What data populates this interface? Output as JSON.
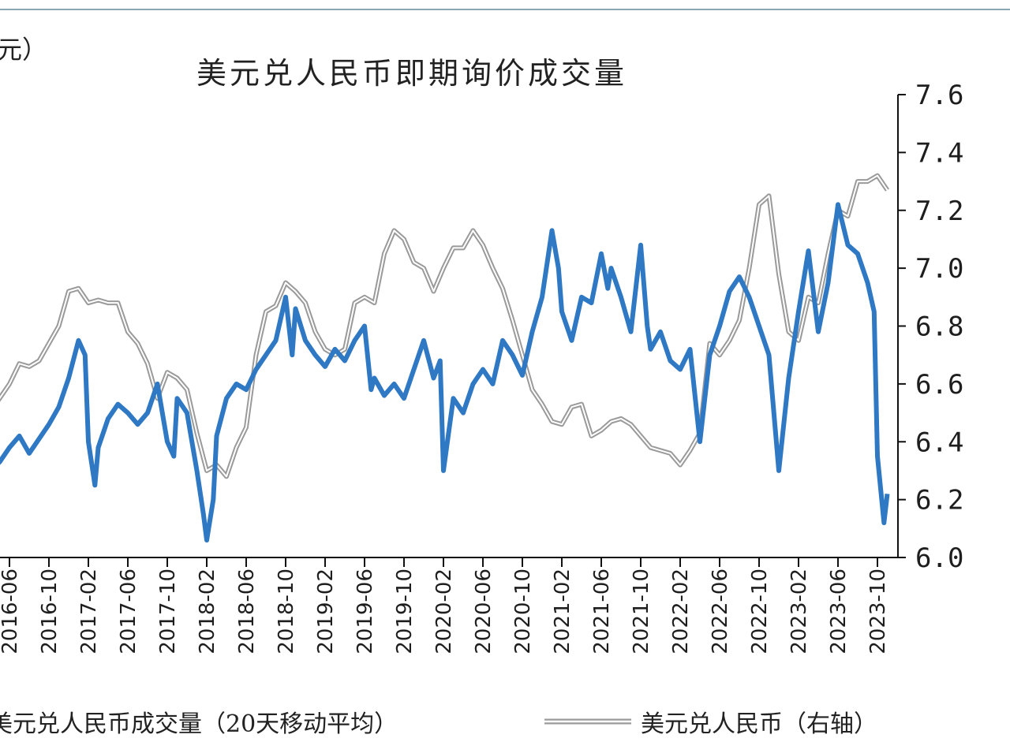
{
  "chart_data": {
    "type": "line",
    "title": "美元兑人民币即期询价成交量",
    "left_unit_fragment": "元）",
    "right_axis": {
      "ylim": [
        6.0,
        7.6
      ],
      "ticks": [
        "6.0",
        "6.2",
        "6.4",
        "6.6",
        "6.8",
        "7.0",
        "7.2",
        "7.4",
        "7.6"
      ]
    },
    "x_ticks": [
      "2016-06",
      "2016-10",
      "2017-02",
      "2017-06",
      "2017-10",
      "2018-02",
      "2018-06",
      "2018-10",
      "2019-02",
      "2019-06",
      "2019-10",
      "2020-02",
      "2020-06",
      "2020-10",
      "2021-02",
      "2021-06",
      "2021-10",
      "2022-02",
      "2022-06",
      "2022-10",
      "2023-02",
      "2023-06",
      "2023-10"
    ],
    "series": [
      {
        "name": "美元兑人民币成交量（20天移动平均）",
        "color": "#2f78c4",
        "axis": "left",
        "note": "values expressed on right-axis scale for plotting",
        "points": [
          [
            "2016-04",
            6.3
          ],
          [
            "2016-05",
            6.33
          ],
          [
            "2016-06",
            6.38
          ],
          [
            "2016-07",
            6.42
          ],
          [
            "2016-08",
            6.36
          ],
          [
            "2016-09",
            6.41
          ],
          [
            "2016-10",
            6.46
          ],
          [
            "2016-11",
            6.52
          ],
          [
            "2016-12",
            6.62
          ],
          [
            "2017-01",
            6.75
          ],
          [
            "2017-01-20",
            6.7
          ],
          [
            "2017-02",
            6.4
          ],
          [
            "2017-02-20",
            6.25
          ],
          [
            "2017-03",
            6.38
          ],
          [
            "2017-04",
            6.48
          ],
          [
            "2017-05",
            6.53
          ],
          [
            "2017-06",
            6.5
          ],
          [
            "2017-07",
            6.46
          ],
          [
            "2017-08",
            6.5
          ],
          [
            "2017-09",
            6.6
          ],
          [
            "2017-10",
            6.4
          ],
          [
            "2017-10-20",
            6.35
          ],
          [
            "2017-11",
            6.55
          ],
          [
            "2017-12",
            6.5
          ],
          [
            "2018-01",
            6.3
          ],
          [
            "2018-01-20",
            6.15
          ],
          [
            "2018-02",
            6.06
          ],
          [
            "2018-02-20",
            6.2
          ],
          [
            "2018-03",
            6.42
          ],
          [
            "2018-04",
            6.55
          ],
          [
            "2018-05",
            6.6
          ],
          [
            "2018-06",
            6.58
          ],
          [
            "2018-07",
            6.65
          ],
          [
            "2018-08",
            6.7
          ],
          [
            "2018-09",
            6.75
          ],
          [
            "2018-10",
            6.9
          ],
          [
            "2018-10-20",
            6.7
          ],
          [
            "2018-11",
            6.86
          ],
          [
            "2018-12",
            6.75
          ],
          [
            "2019-01",
            6.7
          ],
          [
            "2019-02",
            6.66
          ],
          [
            "2019-03",
            6.72
          ],
          [
            "2019-04",
            6.68
          ],
          [
            "2019-05",
            6.75
          ],
          [
            "2019-06",
            6.8
          ],
          [
            "2019-06-20",
            6.58
          ],
          [
            "2019-07",
            6.62
          ],
          [
            "2019-08",
            6.56
          ],
          [
            "2019-09",
            6.6
          ],
          [
            "2019-10",
            6.55
          ],
          [
            "2019-11",
            6.65
          ],
          [
            "2019-12",
            6.75
          ],
          [
            "2020-01",
            6.62
          ],
          [
            "2020-01-20",
            6.68
          ],
          [
            "2020-02",
            6.3
          ],
          [
            "2020-03",
            6.55
          ],
          [
            "2020-04",
            6.5
          ],
          [
            "2020-05",
            6.6
          ],
          [
            "2020-06",
            6.65
          ],
          [
            "2020-07",
            6.6
          ],
          [
            "2020-08",
            6.75
          ],
          [
            "2020-09",
            6.7
          ],
          [
            "2020-10",
            6.63
          ],
          [
            "2020-11",
            6.78
          ],
          [
            "2020-12",
            6.9
          ],
          [
            "2021-01",
            7.13
          ],
          [
            "2021-01-20",
            7.0
          ],
          [
            "2021-02",
            6.85
          ],
          [
            "2021-03",
            6.75
          ],
          [
            "2021-04",
            6.9
          ],
          [
            "2021-05",
            6.88
          ],
          [
            "2021-06",
            7.05
          ],
          [
            "2021-06-20",
            6.93
          ],
          [
            "2021-07",
            7.0
          ],
          [
            "2021-08",
            6.9
          ],
          [
            "2021-09",
            6.78
          ],
          [
            "2021-10",
            7.08
          ],
          [
            "2021-10-20",
            6.8
          ],
          [
            "2021-11",
            6.72
          ],
          [
            "2021-12",
            6.78
          ],
          [
            "2022-01",
            6.68
          ],
          [
            "2022-02",
            6.65
          ],
          [
            "2022-03",
            6.72
          ],
          [
            "2022-04",
            6.4
          ],
          [
            "2022-05",
            6.7
          ],
          [
            "2022-06",
            6.8
          ],
          [
            "2022-07",
            6.92
          ],
          [
            "2022-08",
            6.97
          ],
          [
            "2022-09",
            6.9
          ],
          [
            "2022-10",
            6.8
          ],
          [
            "2022-11",
            6.7
          ],
          [
            "2022-12",
            6.3
          ],
          [
            "2023-01",
            6.62
          ],
          [
            "2023-02",
            6.85
          ],
          [
            "2023-03",
            7.06
          ],
          [
            "2023-04",
            6.78
          ],
          [
            "2023-05",
            6.95
          ],
          [
            "2023-06",
            7.22
          ],
          [
            "2023-07",
            7.08
          ],
          [
            "2023-08",
            7.05
          ],
          [
            "2023-09",
            6.95
          ],
          [
            "2023-09-20",
            6.85
          ],
          [
            "2023-10",
            6.35
          ],
          [
            "2023-10-20",
            6.12
          ],
          [
            "2023-11",
            6.22
          ]
        ]
      },
      {
        "name": "美元兑人民币（右轴）",
        "color": "#a6a6a6",
        "axis": "right",
        "points": [
          [
            "2016-04",
            6.5
          ],
          [
            "2016-05",
            6.55
          ],
          [
            "2016-06",
            6.6
          ],
          [
            "2016-07",
            6.67
          ],
          [
            "2016-08",
            6.66
          ],
          [
            "2016-09",
            6.68
          ],
          [
            "2016-10",
            6.74
          ],
          [
            "2016-11",
            6.8
          ],
          [
            "2016-12",
            6.92
          ],
          [
            "2017-01",
            6.93
          ],
          [
            "2017-02",
            6.88
          ],
          [
            "2017-03",
            6.89
          ],
          [
            "2017-04",
            6.88
          ],
          [
            "2017-05",
            6.88
          ],
          [
            "2017-06",
            6.78
          ],
          [
            "2017-07",
            6.74
          ],
          [
            "2017-08",
            6.67
          ],
          [
            "2017-09",
            6.55
          ],
          [
            "2017-10",
            6.64
          ],
          [
            "2017-11",
            6.62
          ],
          [
            "2017-12",
            6.58
          ],
          [
            "2018-01",
            6.43
          ],
          [
            "2018-02",
            6.3
          ],
          [
            "2018-03",
            6.32
          ],
          [
            "2018-04",
            6.28
          ],
          [
            "2018-05",
            6.38
          ],
          [
            "2018-06",
            6.45
          ],
          [
            "2018-07",
            6.7
          ],
          [
            "2018-08",
            6.85
          ],
          [
            "2018-09",
            6.87
          ],
          [
            "2018-10",
            6.95
          ],
          [
            "2018-11",
            6.92
          ],
          [
            "2018-12",
            6.88
          ],
          [
            "2019-01",
            6.78
          ],
          [
            "2019-02",
            6.72
          ],
          [
            "2019-03",
            6.7
          ],
          [
            "2019-04",
            6.72
          ],
          [
            "2019-05",
            6.88
          ],
          [
            "2019-06",
            6.9
          ],
          [
            "2019-07",
            6.88
          ],
          [
            "2019-08",
            7.05
          ],
          [
            "2019-09",
            7.13
          ],
          [
            "2019-10",
            7.1
          ],
          [
            "2019-11",
            7.02
          ],
          [
            "2019-12",
            7.0
          ],
          [
            "2020-01",
            6.92
          ],
          [
            "2020-02",
            7.0
          ],
          [
            "2020-03",
            7.07
          ],
          [
            "2020-04",
            7.07
          ],
          [
            "2020-05",
            7.13
          ],
          [
            "2020-06",
            7.08
          ],
          [
            "2020-07",
            7.0
          ],
          [
            "2020-08",
            6.93
          ],
          [
            "2020-09",
            6.82
          ],
          [
            "2020-10",
            6.7
          ],
          [
            "2020-11",
            6.58
          ],
          [
            "2020-12",
            6.53
          ],
          [
            "2021-01",
            6.47
          ],
          [
            "2021-02",
            6.46
          ],
          [
            "2021-03",
            6.52
          ],
          [
            "2021-04",
            6.53
          ],
          [
            "2021-05",
            6.42
          ],
          [
            "2021-06",
            6.44
          ],
          [
            "2021-07",
            6.47
          ],
          [
            "2021-08",
            6.48
          ],
          [
            "2021-09",
            6.46
          ],
          [
            "2021-10",
            6.42
          ],
          [
            "2021-11",
            6.38
          ],
          [
            "2021-12",
            6.37
          ],
          [
            "2022-01",
            6.36
          ],
          [
            "2022-02",
            6.32
          ],
          [
            "2022-03",
            6.37
          ],
          [
            "2022-04",
            6.43
          ],
          [
            "2022-05",
            6.74
          ],
          [
            "2022-06",
            6.7
          ],
          [
            "2022-07",
            6.75
          ],
          [
            "2022-08",
            6.82
          ],
          [
            "2022-09",
            7.0
          ],
          [
            "2022-10",
            7.22
          ],
          [
            "2022-11",
            7.25
          ],
          [
            "2022-12",
            6.98
          ],
          [
            "2023-01",
            6.78
          ],
          [
            "2023-02",
            6.75
          ],
          [
            "2023-03",
            6.9
          ],
          [
            "2023-04",
            6.88
          ],
          [
            "2023-05",
            7.05
          ],
          [
            "2023-06",
            7.2
          ],
          [
            "2023-07",
            7.18
          ],
          [
            "2023-08",
            7.3
          ],
          [
            "2023-09",
            7.3
          ],
          [
            "2023-10",
            7.32
          ],
          [
            "2023-11",
            7.27
          ]
        ]
      }
    ],
    "legend": [
      {
        "text": "美元兑人民币成交量（20天移动平均）",
        "style": "thick-blue"
      },
      {
        "text": "美元兑人民币（右轴）",
        "style": "double-gray"
      }
    ]
  }
}
